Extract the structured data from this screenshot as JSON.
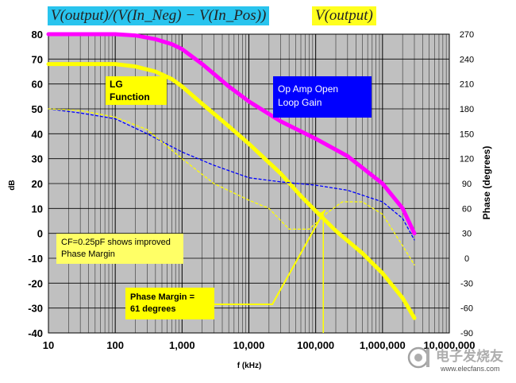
{
  "header": {
    "left": "V(output)/(V(In_Neg) − V(In_Pos))",
    "right": "V(output)",
    "left_color": "#29c4ee",
    "right_color": "#ffff1e"
  },
  "chart_data": {
    "type": "line",
    "x_scale": "log",
    "xlabel": "f (kHz)",
    "ylabel": "dB",
    "ylabel_right": "Phase (degrees)",
    "xlim": [
      10,
      10000000
    ],
    "ylim": [
      -40,
      80
    ],
    "ylim_right": [
      -90,
      270
    ],
    "grid": true,
    "plot_background": "#c0c0c0",
    "x_ticks": [
      10,
      100,
      1000,
      10000,
      100000,
      1000000,
      10000000
    ],
    "x_tick_labels": [
      "10",
      "100",
      "1,000",
      "10,000",
      "100,000",
      "1,000,000",
      "10,000,000"
    ],
    "y_ticks": [
      80,
      70,
      60,
      50,
      40,
      30,
      20,
      10,
      0,
      -10,
      -20,
      -30,
      -40
    ],
    "y_tick_labels": [
      "80",
      "70",
      "60",
      "50",
      "40",
      "30",
      "20",
      "10",
      "0",
      "-10",
      "-20",
      "-30",
      "-40"
    ],
    "y_right_ticks": [
      270,
      240,
      210,
      180,
      150,
      120,
      90,
      60,
      30,
      0,
      -30,
      -60,
      -90
    ],
    "y_right_tick_labels": [
      "270",
      "240",
      "210",
      "180",
      "150",
      "120",
      "90",
      "60",
      "30",
      "0",
      "-30",
      "-60",
      "-90"
    ],
    "series": [
      {
        "axis": "left",
        "style": "solid-thick",
        "color": "#ff00ff",
        "x": [
          10,
          100,
          200,
          400,
          700,
          1000,
          2000,
          5000,
          10000,
          30000,
          100000,
          300000,
          1000000,
          2000000,
          3000000
        ],
        "y": [
          80,
          80,
          79.5,
          78,
          76,
          74,
          68,
          59,
          53,
          45,
          38,
          31,
          20,
          10,
          0
        ]
      },
      {
        "axis": "left",
        "style": "solid-thick",
        "color": "#ffff00",
        "x": [
          10,
          100,
          200,
          400,
          700,
          1000,
          2000,
          5000,
          10000,
          30000,
          60000,
          100000,
          200000,
          500000,
          1000000,
          2000000,
          3000000
        ],
        "y": [
          68,
          68,
          67,
          65,
          62,
          59,
          52,
          43,
          36,
          24,
          15,
          9,
          1,
          -8,
          -16,
          -26,
          -34
        ]
      },
      {
        "axis": "right",
        "style": "dashed",
        "color": "#0000ff",
        "x": [
          10,
          30,
          100,
          300,
          1000,
          3000,
          10000,
          30000,
          100000,
          300000,
          1000000,
          2000000,
          3000000
        ],
        "y": [
          180,
          175,
          168,
          150,
          128,
          112,
          97,
          92,
          88,
          82,
          68,
          48,
          22
        ]
      },
      {
        "axis": "right",
        "style": "dashed",
        "color": "#ffff00",
        "x": [
          10,
          30,
          100,
          300,
          1000,
          3000,
          10000,
          20000,
          40000,
          80000,
          150000,
          250000,
          500000,
          1000000,
          2000000,
          3000000
        ],
        "y": [
          180,
          178,
          170,
          155,
          120,
          90,
          70,
          60,
          35,
          35,
          55,
          68,
          68,
          53,
          15,
          -8
        ]
      }
    ],
    "annotations": [
      {
        "id": "lg",
        "text": "LG\nFunction"
      },
      {
        "id": "op",
        "text": "Op Amp Open\nLoop Gain"
      },
      {
        "id": "cf",
        "text": "CF=0.25pF shows improved\nPhase Margin"
      },
      {
        "id": "pm",
        "text": "Phase Margin =\n61 degrees"
      }
    ],
    "phase_margin_marker_x": 130000
  },
  "watermark": {
    "text": "www.elecfans.com"
  }
}
